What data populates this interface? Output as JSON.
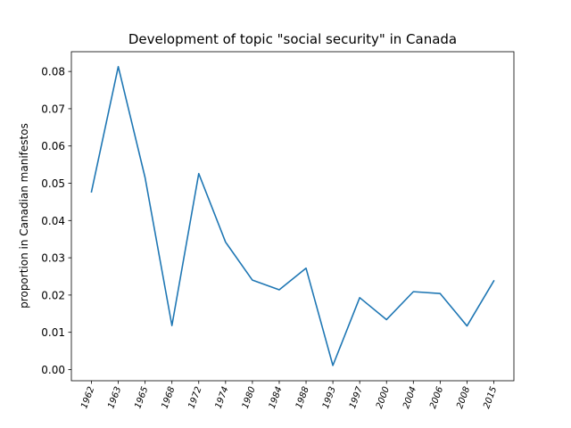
{
  "chart_data": {
    "type": "line",
    "title": "Development of topic \"social security\" in Canada",
    "xlabel": "",
    "ylabel": "proportion in Canadian manifestos",
    "categories": [
      "1962",
      "1963",
      "1965",
      "1968",
      "1972",
      "1974",
      "1980",
      "1984",
      "1988",
      "1993",
      "1997",
      "2000",
      "2004",
      "2006",
      "2008",
      "2015"
    ],
    "series": [
      {
        "values": [
          0.0477,
          0.0813,
          0.0515,
          0.0118,
          0.0526,
          0.0342,
          0.024,
          0.0214,
          0.0272,
          0.0011,
          0.0193,
          0.0134,
          0.0209,
          0.0204,
          0.0117,
          0.0238
        ]
      }
    ],
    "ylim": [
      -0.003,
      0.0853
    ],
    "yticks": [
      "0.00",
      "0.01",
      "0.02",
      "0.03",
      "0.04",
      "0.05",
      "0.06",
      "0.07",
      "0.08"
    ],
    "ytick_values": [
      0,
      0.01,
      0.02,
      0.03,
      0.04,
      0.05,
      0.06,
      0.07,
      0.08
    ],
    "grid": false,
    "line_color": "#1f77b4"
  }
}
